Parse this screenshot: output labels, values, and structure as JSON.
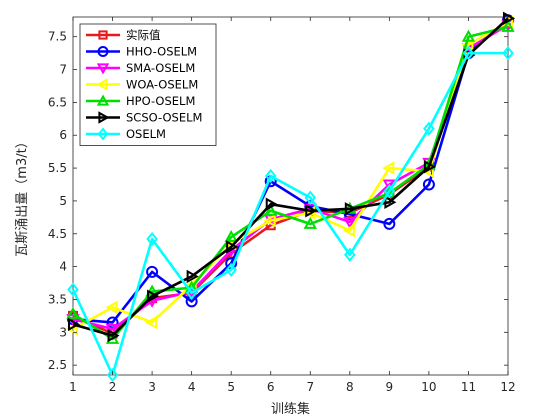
{
  "chart_data": {
    "type": "line",
    "title": "",
    "xlabel": "训练集",
    "ylabel": "瓦斯涌出量（m3/t）",
    "xlim": [
      1,
      12
    ],
    "ylim": [
      2.35,
      7.8
    ],
    "xticks": [
      1,
      2,
      3,
      4,
      5,
      6,
      7,
      8,
      9,
      10,
      11,
      12
    ],
    "yticks": [
      2.5,
      3,
      3.5,
      4,
      4.5,
      5,
      5.5,
      6,
      6.5,
      7,
      7.5
    ],
    "grid": false,
    "legend_position": "top-left",
    "x": [
      1,
      2,
      3,
      4,
      5,
      6,
      7,
      8,
      9,
      10,
      11,
      12
    ],
    "series": [
      {
        "name": "实际值",
        "color": "#e41a1c",
        "marker": "square",
        "values": [
          3.25,
          2.98,
          3.52,
          3.6,
          4.2,
          4.63,
          4.85,
          4.82,
          5.1,
          5.52,
          7.3,
          7.7
        ]
      },
      {
        "name": "HHO-OSELM",
        "color": "#0000ff",
        "marker": "circle",
        "values": [
          3.2,
          3.15,
          3.92,
          3.47,
          4.05,
          5.3,
          4.92,
          4.8,
          4.65,
          5.25,
          7.25,
          7.75
        ]
      },
      {
        "name": "SMA-OSELM",
        "color": "#ff00ff",
        "marker": "triangle-down",
        "values": [
          3.2,
          3.05,
          3.48,
          3.62,
          4.25,
          4.72,
          4.88,
          4.68,
          5.25,
          5.58,
          7.32,
          7.68
        ]
      },
      {
        "name": "WOA-OSELM",
        "color": "#ffff00",
        "marker": "triangle-left",
        "values": [
          3.05,
          3.38,
          3.15,
          3.72,
          4.35,
          4.7,
          4.82,
          4.55,
          5.5,
          5.45,
          7.38,
          7.72
        ]
      },
      {
        "name": "HPO-OSELM",
        "color": "#00dd00",
        "marker": "triangle-up",
        "values": [
          3.28,
          2.9,
          3.62,
          3.68,
          4.45,
          4.85,
          4.65,
          4.88,
          5.12,
          5.55,
          7.5,
          7.65
        ]
      },
      {
        "name": "SCSO-OSELM",
        "color": "#000000",
        "marker": "triangle-right",
        "values": [
          3.12,
          2.95,
          3.55,
          3.85,
          4.3,
          4.95,
          4.85,
          4.88,
          4.98,
          5.52,
          7.22,
          7.78
        ]
      },
      {
        "name": "OSELM",
        "color": "#00ffff",
        "marker": "diamond",
        "values": [
          3.65,
          2.35,
          4.42,
          3.6,
          3.95,
          5.38,
          5.05,
          4.18,
          5.15,
          6.1,
          7.25,
          7.25
        ]
      }
    ]
  }
}
